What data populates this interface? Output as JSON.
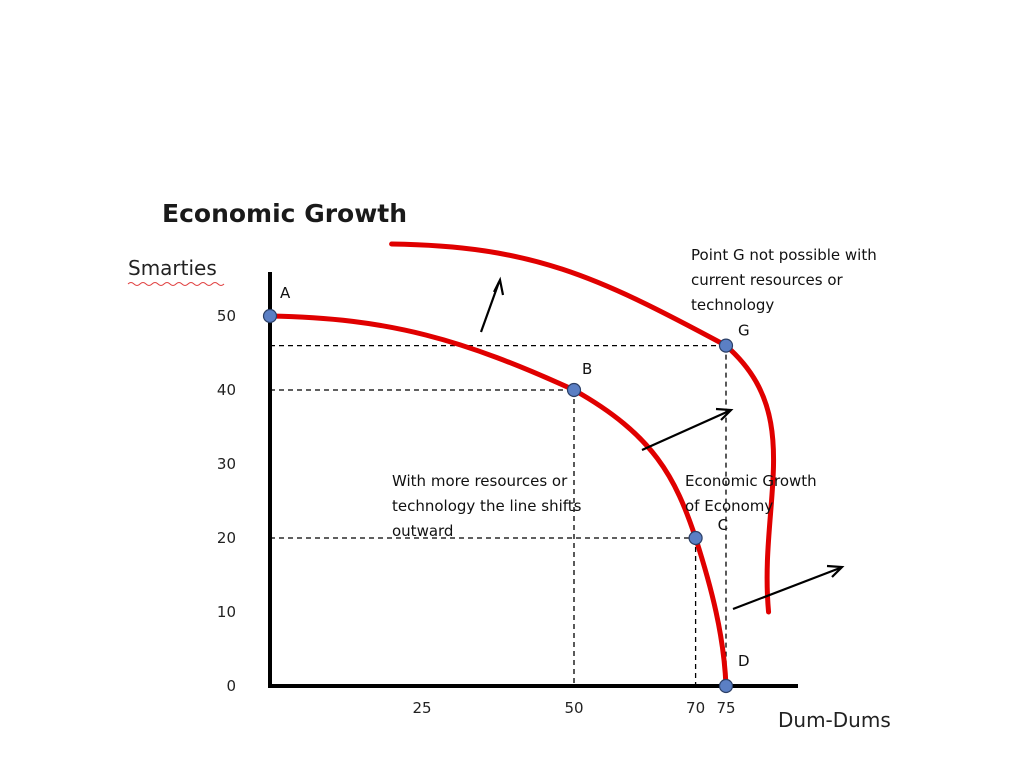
{
  "chart_data": {
    "type": "line",
    "title": "Economic Growth",
    "xlabel": "Dum-Dums",
    "ylabel": "Smarties",
    "xlim": [
      0,
      85
    ],
    "ylim": [
      0,
      57
    ],
    "x_ticks": [
      "25",
      "50",
      "70",
      "75"
    ],
    "y_ticks": [
      "0",
      "10",
      "20",
      "30",
      "40",
      "50"
    ],
    "grid": false,
    "legend": "none",
    "colors": {
      "curve": "#e00000",
      "point": "#5b7fc4",
      "axis": "#000000"
    },
    "series": [
      {
        "points": [
          {
            "label": "A",
            "x": 0,
            "y": 50
          },
          {
            "label": "B",
            "x": 50,
            "y": 40
          },
          {
            "label": "C",
            "x": 70,
            "y": 20
          },
          {
            "label": "D",
            "x": 75,
            "y": 0
          }
        ]
      },
      {
        "points": [
          {
            "x": 20,
            "y": 60
          },
          {
            "label": "G",
            "x": 75,
            "y": 46
          },
          {
            "x": 82,
            "y": 10
          }
        ]
      }
    ],
    "annotations": [
      {
        "id": "note-g",
        "lines": [
          "Point G not possible with",
          "current resources or",
          "technology"
        ]
      },
      {
        "id": "note-shift",
        "lines": [
          "With more resources or",
          "technology the line shifts",
          "outward"
        ]
      },
      {
        "id": "note-growth",
        "lines": [
          "Economic Growth",
          "of Economy"
        ]
      }
    ]
  }
}
